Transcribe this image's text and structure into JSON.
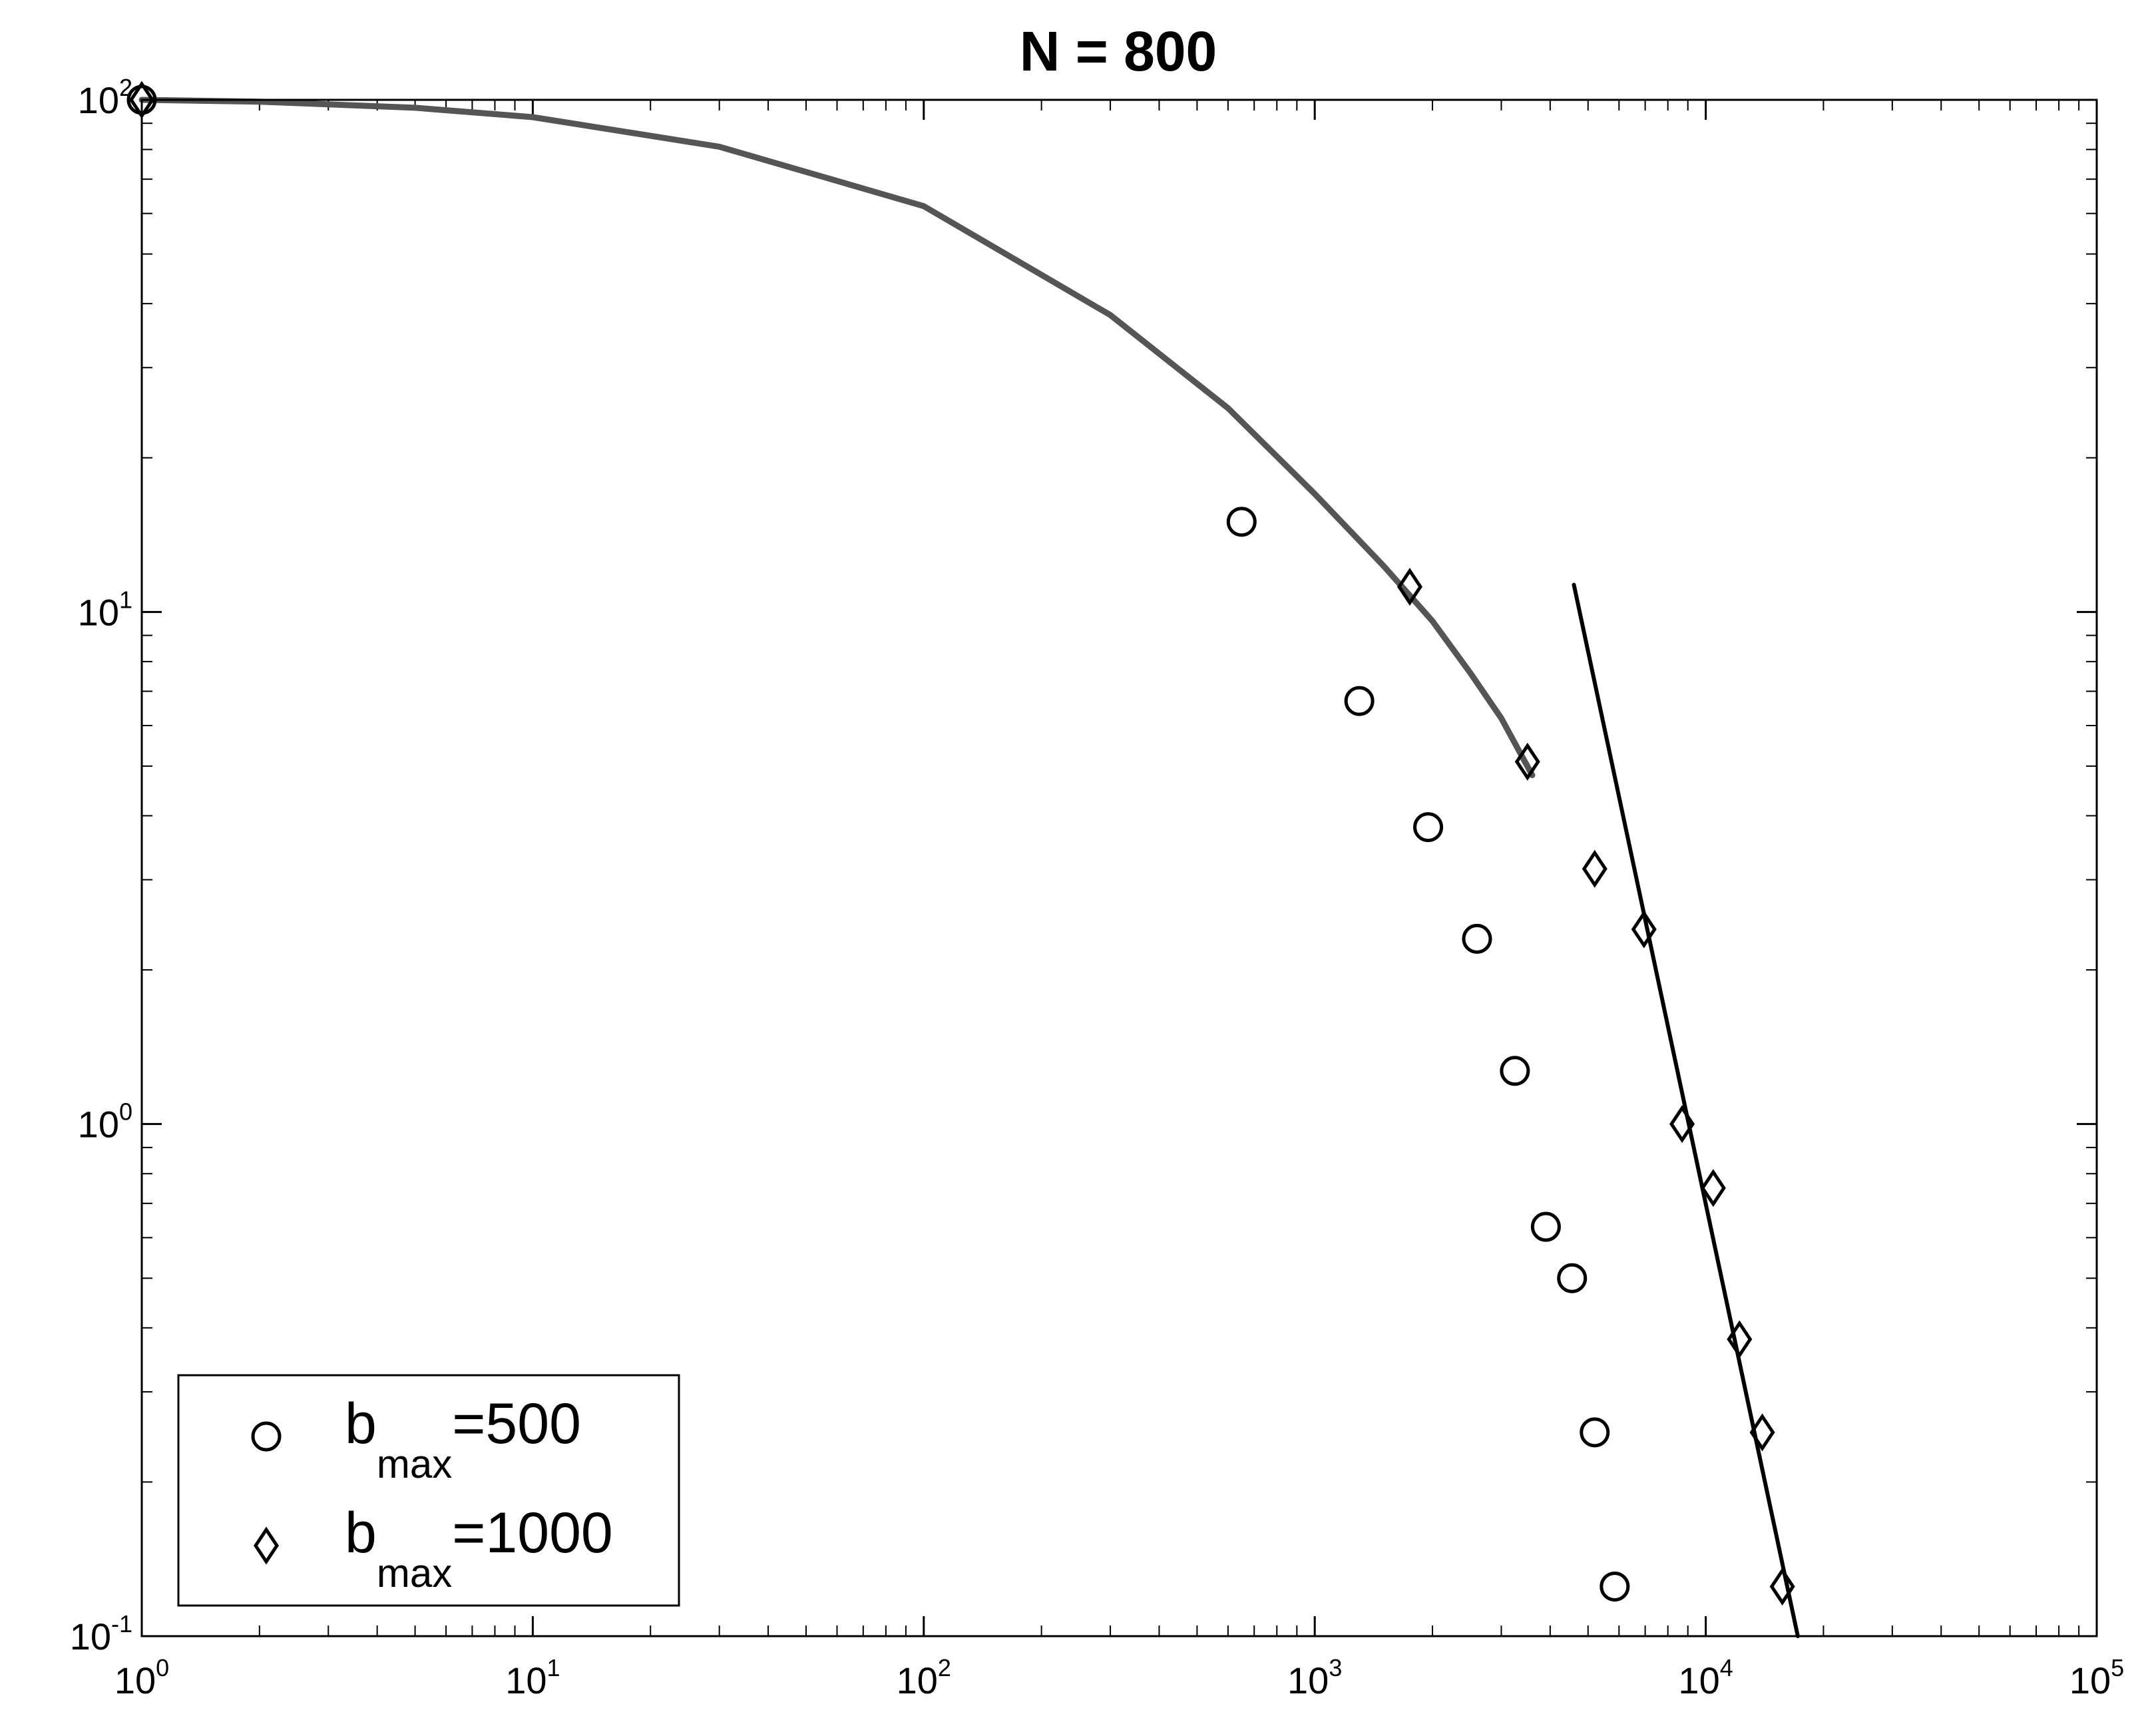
{
  "chart_data": {
    "type": "scatter",
    "title": "N = 800",
    "xlabel": "",
    "ylabel": "",
    "xscale": "log",
    "yscale": "log",
    "xlim": [
      1,
      100000
    ],
    "ylim": [
      0.1,
      100
    ],
    "grid": false,
    "legend_position": "bottom-left",
    "x_ticks": [
      {
        "base": "10",
        "exp": "0"
      },
      {
        "base": "10",
        "exp": "1"
      },
      {
        "base": "10",
        "exp": "2"
      },
      {
        "base": "10",
        "exp": "3"
      },
      {
        "base": "10",
        "exp": "4"
      },
      {
        "base": "10",
        "exp": "5"
      }
    ],
    "y_ticks": [
      {
        "base": "10",
        "exp": "-1"
      },
      {
        "base": "10",
        "exp": "0"
      },
      {
        "base": "10",
        "exp": "1"
      },
      {
        "base": "10",
        "exp": "2"
      }
    ],
    "series": [
      {
        "legend_base": "b",
        "legend_sub": "max",
        "legend_value": "=500",
        "marker": "circle",
        "points": [
          [
            1,
            100
          ],
          [
            650,
            15.0
          ],
          [
            1300,
            6.7
          ],
          [
            1950,
            3.8
          ],
          [
            2600,
            2.3
          ],
          [
            3250,
            1.27
          ],
          [
            3900,
            0.63
          ],
          [
            4550,
            0.5
          ],
          [
            5200,
            0.25
          ],
          [
            5850,
            0.125
          ]
        ]
      },
      {
        "legend_base": "b",
        "legend_sub": "max",
        "legend_value": "=1000",
        "marker": "diamond",
        "points": [
          [
            1,
            100
          ],
          [
            1750,
            11.2
          ],
          [
            3500,
            5.1
          ],
          [
            5200,
            3.15
          ],
          [
            6950,
            2.4
          ],
          [
            8700,
            1.0
          ],
          [
            10450,
            0.75
          ],
          [
            12200,
            0.38
          ],
          [
            13950,
            0.25
          ],
          [
            15700,
            0.125
          ]
        ]
      }
    ],
    "curves": [
      {
        "style": "thick-gray",
        "points": [
          [
            1,
            100
          ],
          [
            2,
            99.2
          ],
          [
            5,
            96.5
          ],
          [
            10,
            92.5
          ],
          [
            30,
            81
          ],
          [
            100,
            62
          ],
          [
            300,
            38
          ],
          [
            600,
            25
          ],
          [
            1000,
            17
          ],
          [
            1500,
            12.3
          ],
          [
            2000,
            9.6
          ],
          [
            2500,
            7.6
          ],
          [
            3000,
            6.2
          ],
          [
            3600,
            4.8
          ]
        ]
      },
      {
        "style": "thin-black",
        "points": [
          [
            4600,
            11.3
          ],
          [
            17200,
            0.1
          ]
        ]
      }
    ]
  }
}
